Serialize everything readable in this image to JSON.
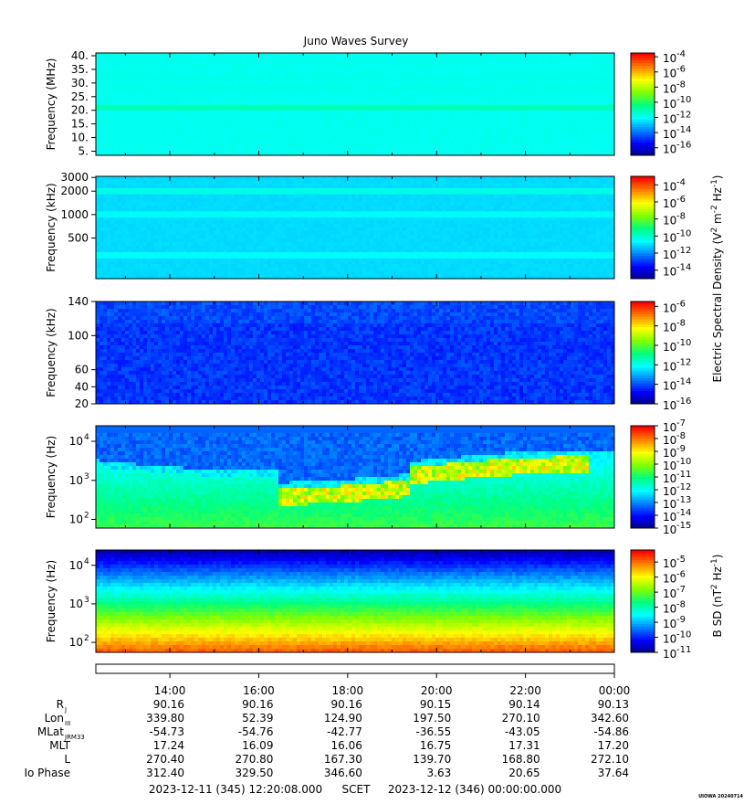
{
  "title": "Juno Waves Survey",
  "footer": {
    "start": "2023-12-11 (345) 12:20:08.000",
    "mid": "SCET",
    "end": "2023-12-12 (346) 00:00:00.000",
    "stamp": "UIOWA 20240714"
  },
  "colormap": [
    "#00007f",
    "#0000ff",
    "#0080ff",
    "#00ffff",
    "#00ff80",
    "#80ff00",
    "#ffff00",
    "#ff8000",
    "#ff0000"
  ],
  "chart_data": [
    {
      "type": "heatmap",
      "ylabel": "Frequency (MHz)",
      "yticks": [
        "40.",
        "35.",
        "30.",
        "25.",
        "20.",
        "15.",
        "10.",
        "5."
      ],
      "yscale": "linear",
      "ylim": [
        3.5,
        41
      ],
      "colorbar_ticks": [
        "-4",
        "-6",
        "-8",
        "-10",
        "-12",
        "-14",
        "-16"
      ],
      "clim": [
        -17,
        -3.5
      ],
      "base_level": -11.8,
      "bands": [
        {
          "y": 21,
          "width": 1.0,
          "level": -10.9
        },
        {
          "y": 28,
          "width": 0.5,
          "level": -11.6
        },
        {
          "y": 32,
          "width": 0.5,
          "level": -11.6
        }
      ]
    },
    {
      "type": "heatmap",
      "ylabel": "Frequency (kHz)",
      "yticks": [
        "3000",
        "2000",
        "1000",
        "500"
      ],
      "yscale": "log",
      "ylim": [
        150,
        3100
      ],
      "colorbar_ticks": [
        "-4",
        "-6",
        "-8",
        "-10",
        "-12",
        "-14"
      ],
      "clim": [
        -15,
        -3
      ],
      "base_level": -11.0,
      "bands": [
        {
          "y": 2000,
          "width": 0.04,
          "level": -10.2
        },
        {
          "y": 1000,
          "width": 0.04,
          "level": -10.4
        },
        {
          "y": 300,
          "width": 0.04,
          "level": -10.5
        }
      ]
    },
    {
      "type": "heatmap",
      "ylabel": "Frequency (kHz)",
      "yticks": [
        "140",
        "100",
        "60",
        "40",
        "20"
      ],
      "yscale": "linear",
      "ylim": [
        20,
        140
      ],
      "colorbar_ticks": [
        "-6",
        "-8",
        "-10",
        "-12",
        "-14",
        "-16"
      ],
      "clim": [
        -16,
        -5.5
      ],
      "base_level": -14.3,
      "bands": []
    },
    {
      "type": "heatmap",
      "ylabel": "Frequency (Hz)",
      "yticks": [
        "10",
        "10",
        "10"
      ],
      "ytick_exponents": [
        "4",
        "3",
        "2"
      ],
      "yscale": "log",
      "ylim": [
        60,
        25000
      ],
      "colorbar_ticks": [
        "-7",
        "-8",
        "-9",
        "-10",
        "-11",
        "-12",
        "-13",
        "-14",
        "-15"
      ],
      "clim": [
        -15,
        -7
      ],
      "base_level": -12.0,
      "bands": []
    },
    {
      "type": "heatmap",
      "ylabel": "Frequency (Hz)",
      "yticks": [
        "10",
        "10",
        "10"
      ],
      "ytick_exponents": [
        "4",
        "3",
        "2"
      ],
      "yscale": "log",
      "ylim": [
        55,
        25000
      ],
      "colorbar_ticks": [
        "-5",
        "-6",
        "-7",
        "-8",
        "-9",
        "-10",
        "-11"
      ],
      "clim": [
        -11,
        -4.2
      ],
      "base_level": -8.5,
      "bands": []
    }
  ],
  "colorbar_labels": {
    "electric": {
      "prefix": "Electric Spectral Density (V",
      "sup1": "2",
      "mid": " m",
      "sup2": "-2",
      "mid2": " Hz",
      "sup3": "-1",
      "suffix": ")"
    },
    "magnetic": {
      "prefix": "B SD (nT",
      "sup1": "2",
      "mid": " Hz",
      "sup2": "-1",
      "suffix": ")"
    }
  },
  "ephemeris": {
    "times": [
      "14:00",
      "16:00",
      "18:00",
      "20:00",
      "22:00",
      "00:00"
    ],
    "time_values_hours": [
      14,
      16,
      18,
      20,
      22,
      24
    ],
    "time_range_hours": [
      12.335,
      24.0
    ],
    "rows": [
      {
        "label": "R",
        "sub": "J",
        "values": [
          "90.16",
          "90.16",
          "90.16",
          "90.15",
          "90.14",
          "90.13"
        ]
      },
      {
        "label": "Lon",
        "sub": "III",
        "values": [
          "339.80",
          "52.39",
          "124.90",
          "197.50",
          "270.10",
          "342.60"
        ]
      },
      {
        "label": "MLat",
        "sub": "JRM33",
        "values": [
          "-54.73",
          "-54.76",
          "-42.77",
          "-36.55",
          "-43.05",
          "-54.86"
        ]
      },
      {
        "label": "MLT",
        "sub": "",
        "values": [
          "17.24",
          "16.09",
          "16.06",
          "16.75",
          "17.31",
          "17.20"
        ]
      },
      {
        "label": "L",
        "sub": "",
        "values": [
          "270.40",
          "270.80",
          "167.30",
          "139.70",
          "168.80",
          "272.10"
        ]
      },
      {
        "label": "Io Phase",
        "sub": "",
        "values": [
          "312.40",
          "329.50",
          "346.60",
          "3.63",
          "20.65",
          "37.64"
        ]
      }
    ]
  }
}
